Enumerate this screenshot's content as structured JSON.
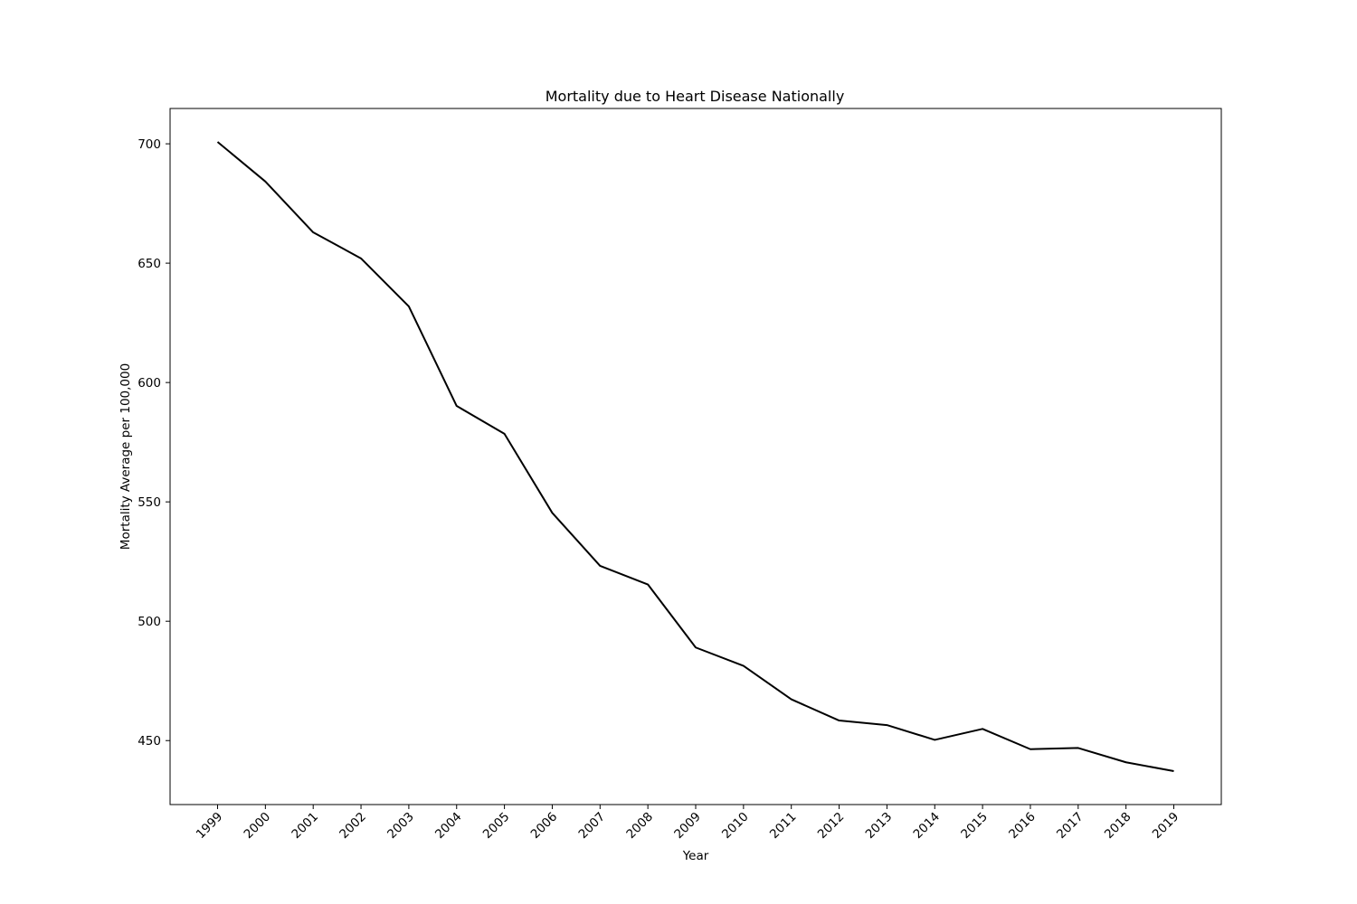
{
  "chart_data": {
    "type": "line",
    "title": "Mortality due to Heart Disease Nationally",
    "xlabel": "Year",
    "ylabel": "Mortality Average per 100,000",
    "x": [
      "1999",
      "2000",
      "2001",
      "2002",
      "2003",
      "2004",
      "2005",
      "2006",
      "2007",
      "2008",
      "2009",
      "2010",
      "2011",
      "2012",
      "2013",
      "2014",
      "2015",
      "2016",
      "2017",
      "2018",
      "2019"
    ],
    "series": [
      {
        "values": [
          700.8,
          684.2,
          662.9,
          652.0,
          631.9,
          590.2,
          578.5,
          545.4,
          523.2,
          515.4,
          489.0,
          481.3,
          467.3,
          458.4,
          456.5,
          450.3,
          454.9,
          446.4,
          446.9,
          440.9,
          437.2
        ]
      }
    ],
    "yticks": [
      450,
      500,
      550,
      600,
      650,
      700
    ],
    "ylim": [
      423.2,
      714.8
    ],
    "grid": false,
    "line_color": "#000000"
  }
}
